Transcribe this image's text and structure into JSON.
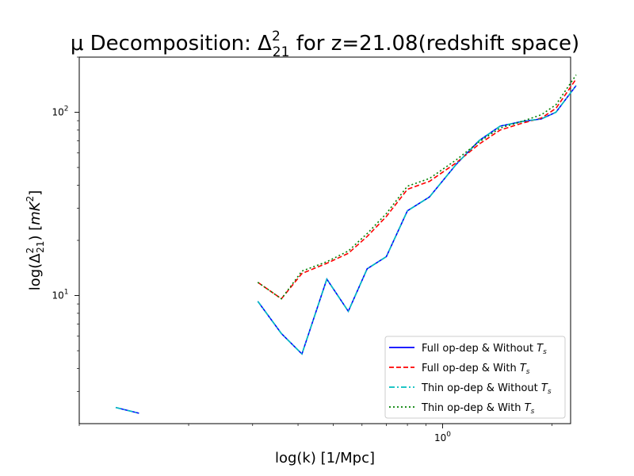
{
  "chart_data": {
    "type": "line",
    "title_prefix": "μ Decomposition: Δ",
    "title_sup": "2",
    "title_sub": "21",
    "title_suffix": " for z=21.08(redshift space)",
    "xlabel": "log(k) [1/Mpc]",
    "ylabel_prefix": "log(Δ",
    "ylabel_sup": "2",
    "ylabel_sub": "21",
    "ylabel_mid": ") [",
    "ylabel_unit": "mK",
    "ylabel_unit_sup": "2",
    "ylabel_end": "]",
    "xscale": "log",
    "yscale": "log",
    "xlim": [
      0.1,
      2.25
    ],
    "ylim": [
      2.0,
      200
    ],
    "x_ticks": [
      {
        "value": 1,
        "base": "10",
        "exp": "0"
      }
    ],
    "y_ticks": [
      {
        "value": 10,
        "base": "10",
        "exp": "1"
      },
      {
        "value": 100,
        "base": "10",
        "exp": "2"
      }
    ],
    "grid": false,
    "legend_position": "lower right",
    "series": [
      {
        "name_prefix": "Full op-dep & Without ",
        "name_var": "T",
        "name_sub": "s",
        "color": "#0000ff",
        "dash": "solid",
        "segments": [
          {
            "x": [
              0.126,
              0.146
            ],
            "y": [
              2.45,
              2.28
            ]
          },
          {
            "x": [
              0.31,
              0.36,
              0.41,
              0.48,
              0.55,
              0.62,
              0.7,
              0.8,
              0.92,
              1.09,
              1.26,
              1.44,
              1.65,
              1.87,
              2.05,
              2.33
            ],
            "y": [
              9.3,
              6.2,
              4.8,
              12.3,
              8.2,
              14.0,
              16.3,
              29.0,
              34.5,
              52.0,
              70.0,
              84.0,
              89.0,
              92.0,
              100.0,
              140.0
            ]
          }
        ]
      },
      {
        "name_prefix": "Full op-dep & With ",
        "name_var": "T",
        "name_sub": "s",
        "color": "#ff0000",
        "dash": "dashed",
        "segments": [
          {
            "x": [
              0.31,
              0.36,
              0.41,
              0.48,
              0.55,
              0.62,
              0.7,
              0.8,
              0.92,
              1.09,
              1.26,
              1.44,
              1.65,
              1.87,
              2.05,
              2.33
            ],
            "y": [
              11.8,
              9.6,
              13.2,
              15.0,
              17.0,
              21.0,
              27.0,
              38.0,
              42.0,
              53.0,
              67.0,
              80.0,
              87.0,
              93.0,
              105.0,
              152.0
            ]
          }
        ]
      },
      {
        "name_prefix": "Thin op-dep & Without ",
        "name_var": "T",
        "name_sub": "s",
        "color": "#00bfbf",
        "dash": "dashdot",
        "segments": [
          {
            "x": [
              0.126,
              0.146
            ],
            "y": [
              2.45,
              2.28
            ]
          },
          {
            "x": [
              0.31,
              0.36,
              0.41,
              0.48,
              0.55,
              0.62,
              0.7,
              0.8,
              0.92,
              1.09,
              1.26,
              1.44,
              1.65,
              1.87,
              2.05,
              2.33
            ],
            "y": [
              9.3,
              6.2,
              4.8,
              12.3,
              8.2,
              14.0,
              16.3,
              29.0,
              34.5,
              52.0,
              70.0,
              84.0,
              89.0,
              92.0,
              100.0,
              140.0
            ]
          }
        ]
      },
      {
        "name_prefix": "Thin op-dep & With ",
        "name_var": "T",
        "name_sub": "s",
        "color": "#008000",
        "dash": "dotted",
        "segments": [
          {
            "x": [
              0.31,
              0.36,
              0.41,
              0.48,
              0.55,
              0.62,
              0.7,
              0.8,
              0.92,
              1.09,
              1.26,
              1.44,
              1.65,
              1.87,
              2.05,
              2.33
            ],
            "y": [
              11.8,
              9.6,
              13.6,
              15.3,
              17.5,
              21.8,
              28.0,
              39.5,
              43.5,
              55.0,
              69.0,
              82.0,
              89.0,
              97.0,
              110.0,
              160.0
            ]
          }
        ]
      }
    ]
  }
}
